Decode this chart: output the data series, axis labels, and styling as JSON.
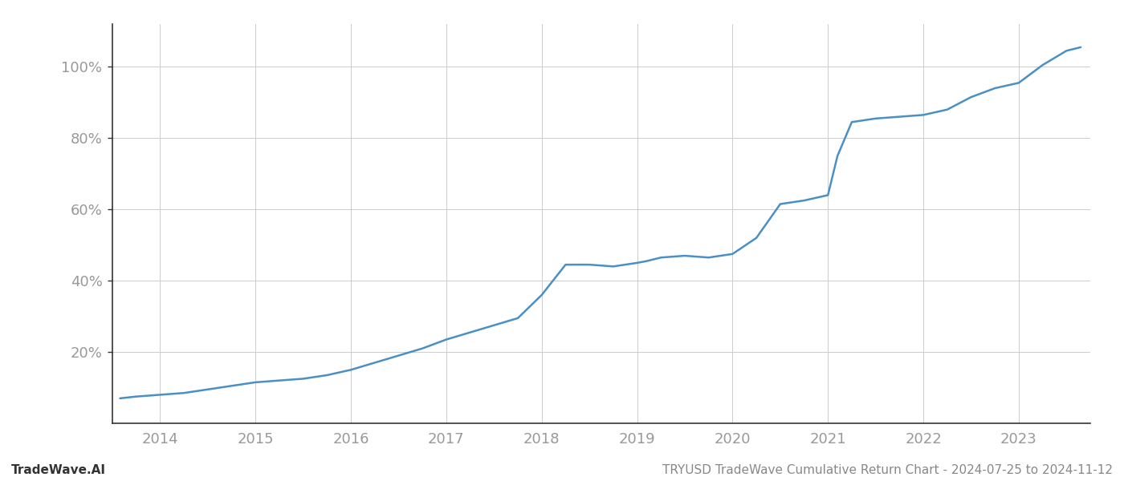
{
  "title": "TRYUSD TradeWave Cumulative Return Chart - 2024-07-25 to 2024-11-12",
  "watermark": "TradeWave.AI",
  "line_color": "#4a90c4",
  "line_width": 1.8,
  "background_color": "#ffffff",
  "grid_color": "#cccccc",
  "x_values": [
    2013.58,
    2013.75,
    2014.0,
    2014.25,
    2014.5,
    2014.75,
    2015.0,
    2015.25,
    2015.5,
    2015.75,
    2016.0,
    2016.25,
    2016.5,
    2016.75,
    2017.0,
    2017.25,
    2017.5,
    2017.75,
    2018.0,
    2018.25,
    2018.5,
    2018.75,
    2019.0,
    2019.1,
    2019.25,
    2019.5,
    2019.75,
    2020.0,
    2020.25,
    2020.5,
    2020.75,
    2021.0,
    2021.1,
    2021.25,
    2021.5,
    2021.75,
    2022.0,
    2022.25,
    2022.5,
    2022.75,
    2023.0,
    2023.25,
    2023.5,
    2023.65
  ],
  "y_values": [
    7.0,
    7.5,
    8.0,
    8.5,
    9.5,
    10.5,
    11.5,
    12.0,
    12.5,
    13.5,
    15.0,
    17.0,
    19.0,
    21.0,
    23.5,
    25.5,
    27.5,
    29.5,
    36.0,
    44.5,
    44.5,
    44.0,
    45.0,
    45.5,
    46.5,
    47.0,
    46.5,
    47.5,
    52.0,
    61.5,
    62.5,
    64.0,
    75.0,
    84.5,
    85.5,
    86.0,
    86.5,
    88.0,
    91.5,
    94.0,
    95.5,
    100.5,
    104.5,
    105.5
  ],
  "yticks": [
    20,
    40,
    60,
    80,
    100
  ],
  "xticks": [
    2014,
    2015,
    2016,
    2017,
    2018,
    2019,
    2020,
    2021,
    2022,
    2023
  ],
  "xlim": [
    2013.5,
    2023.75
  ],
  "ylim": [
    0,
    112
  ],
  "footer_left": "TradeWave.AI",
  "footer_right": "TRYUSD TradeWave Cumulative Return Chart - 2024-07-25 to 2024-11-12"
}
